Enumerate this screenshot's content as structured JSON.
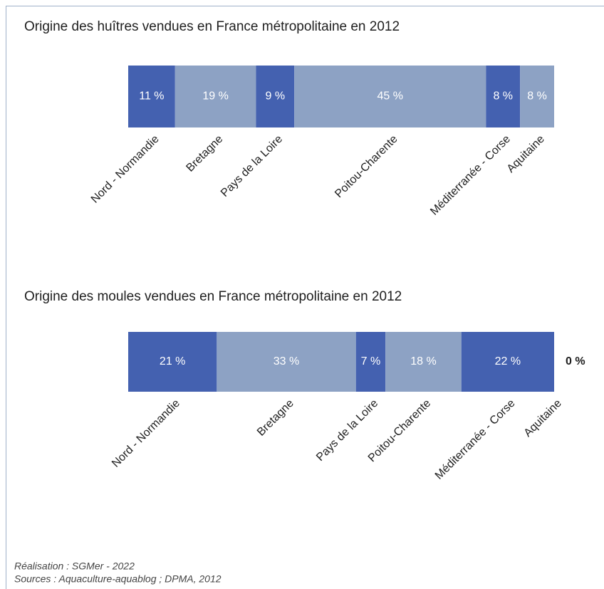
{
  "chart_data": [
    {
      "type": "stacked-bar",
      "title": "Origine des huîtres vendues en France métropolitaine en 2012",
      "categories": [
        "Nord - Normandie",
        "Bretagne",
        "Pays de la Loire",
        "Poitou-Charente",
        "Méditerranée - Corse",
        "Aquitaine"
      ],
      "values": [
        11,
        19,
        9,
        45,
        8,
        8
      ],
      "value_labels": [
        "11 %",
        "19 %",
        "9 %",
        "45 %",
        "8 %",
        "8 %"
      ],
      "colors": [
        "#4461b0",
        "#8da2c4",
        "#4461b0",
        "#8da2c4",
        "#4461b0",
        "#8da2c4"
      ]
    },
    {
      "type": "stacked-bar",
      "title": "Origine des moules vendues en France métropolitaine en 2012",
      "categories": [
        "Nord - Normandie",
        "Bretagne",
        "Pays de la Loire",
        "Poitou-Charente",
        "Méditerranée - Corse",
        "Aquitaine"
      ],
      "values": [
        21,
        33,
        7,
        18,
        22,
        0
      ],
      "value_labels": [
        "21 %",
        "33 %",
        "7 %",
        "18 %",
        "22 %",
        "0 %"
      ],
      "colors": [
        "#4461b0",
        "#8da2c4",
        "#4461b0",
        "#8da2c4",
        "#4461b0",
        "#8da2c4"
      ]
    }
  ],
  "footer": {
    "credit": "Réalisation : SGMer - 2022",
    "sources": "Sources : Aquaculture-aquablog ; DPMA, 2012"
  }
}
